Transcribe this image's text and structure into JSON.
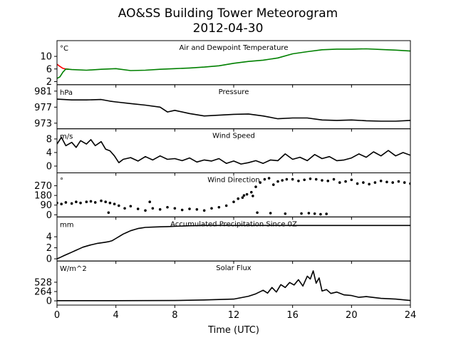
{
  "figure": {
    "title_line1": "AO&SS Building Tower Meteorogram",
    "title_line2": "2012-04-30",
    "xlabel": "Time (UTC)",
    "xticks": [
      0,
      4,
      8,
      12,
      16,
      20,
      24
    ],
    "xlim": [
      0,
      24
    ]
  },
  "colors": {
    "temperature": "#ff0000",
    "dewpoint": "#008000",
    "series": "#000000"
  },
  "chart_data": [
    {
      "type": "line",
      "title": "Air and Dewpoint Temperature",
      "unit": "°C",
      "ylim": [
        1,
        15
      ],
      "yticks": [
        2,
        6,
        10
      ],
      "series": [
        {
          "color": "#ff0000",
          "x": [
            0,
            0.2,
            0.4,
            0.6,
            0.8
          ],
          "y": [
            7.5,
            6.8,
            6.2,
            6.0,
            5.9
          ]
        },
        {
          "color": "#008000",
          "x": [
            0,
            0.2,
            0.4,
            0.6,
            1,
            2,
            3,
            4,
            5,
            6,
            7,
            8,
            9,
            10,
            11,
            12,
            13,
            14,
            15,
            16,
            17,
            18,
            19,
            20,
            21,
            22,
            23,
            24
          ],
          "y": [
            3.0,
            3.5,
            5.0,
            6.0,
            5.8,
            5.6,
            5.9,
            6.1,
            5.5,
            5.6,
            5.9,
            6.1,
            6.3,
            6.6,
            7.0,
            7.8,
            8.4,
            8.8,
            9.5,
            10.8,
            11.5,
            12.1,
            12.3,
            12.3,
            12.4,
            12.2,
            12.0,
            11.7
          ]
        }
      ]
    },
    {
      "type": "line",
      "title": "Pressure",
      "unit": "hPa",
      "ylim": [
        971.6,
        982.6
      ],
      "yticks": [
        973,
        977,
        981
      ],
      "series": [
        {
          "color": "#000000",
          "x": [
            0,
            1,
            2,
            3,
            3.6,
            4,
            5,
            6,
            7,
            7.5,
            8,
            9,
            10,
            11,
            12,
            13,
            14,
            15,
            16,
            17,
            18,
            19,
            20,
            21,
            22,
            23,
            24
          ],
          "y": [
            979.0,
            978.8,
            978.8,
            978.9,
            978.5,
            978.3,
            977.9,
            977.5,
            977.0,
            975.8,
            976.2,
            975.4,
            974.8,
            975.0,
            975.2,
            975.3,
            974.8,
            974.1,
            974.3,
            974.3,
            973.8,
            973.7,
            973.8,
            973.6,
            973.5,
            973.5,
            973.7
          ]
        }
      ]
    },
    {
      "type": "line",
      "title": "Wind Speed",
      "unit": "m/s",
      "ylim": [
        -2,
        11
      ],
      "yticks": [
        0,
        4,
        8
      ],
      "series": [
        {
          "color": "#000000",
          "x": [
            0,
            0.3,
            0.6,
            1,
            1.3,
            1.6,
            2,
            2.3,
            2.6,
            3,
            3.3,
            3.6,
            3.9,
            4.2,
            4.5,
            5,
            5.5,
            6,
            6.5,
            7,
            7.5,
            8,
            8.5,
            9,
            9.5,
            10,
            10.5,
            11,
            11.5,
            12,
            12.5,
            13,
            13.5,
            14,
            14.5,
            15,
            15.5,
            16,
            16.5,
            17,
            17.5,
            18,
            18.5,
            19,
            19.5,
            20,
            20.5,
            21,
            21.5,
            22,
            22.5,
            23,
            23.5,
            24
          ],
          "y": [
            6.5,
            8.5,
            6.0,
            7.0,
            5.5,
            7.5,
            6.5,
            7.8,
            6.0,
            7.2,
            5.0,
            4.5,
            3.0,
            1.0,
            2.0,
            2.5,
            1.5,
            2.8,
            1.8,
            3.0,
            2.0,
            2.2,
            1.6,
            2.4,
            1.2,
            1.8,
            1.5,
            2.2,
            0.8,
            1.5,
            0.6,
            1.0,
            1.6,
            0.8,
            1.8,
            1.6,
            3.6,
            2.0,
            2.6,
            1.6,
            3.4,
            2.2,
            2.8,
            1.6,
            1.8,
            2.4,
            3.6,
            2.6,
            4.2,
            3.0,
            4.6,
            3.0,
            4.0,
            3.2
          ]
        }
      ]
    },
    {
      "type": "scatter",
      "title": "Wind Direction",
      "unit": "°",
      "ylim": [
        -20,
        390
      ],
      "yticks": [
        0,
        90,
        180,
        270
      ],
      "series": [
        {
          "color": "#000000",
          "x": [
            0,
            0.3,
            0.6,
            1,
            1.3,
            1.6,
            2,
            2.3,
            2.6,
            3,
            3.3,
            3.6,
            3.9,
            4.2,
            4.6,
            5,
            5.5,
            6,
            6.5,
            7,
            7.5,
            8,
            8.5,
            9,
            9.5,
            10,
            10.5,
            11,
            11.5,
            12,
            12.3,
            12.6,
            12.9,
            13.2,
            13.5,
            13.8,
            14.1,
            14.4,
            14.7,
            15,
            15.3,
            15.6,
            16,
            16.4,
            16.8,
            17.2,
            17.6,
            18,
            18.4,
            18.8,
            19.2,
            19.6,
            20,
            20.4,
            20.8,
            21.2,
            21.6,
            22,
            22.4,
            22.8,
            23.2,
            23.6,
            24,
            3.5,
            6.3,
            12.7,
            13.3,
            14.5,
            15.5,
            16.6,
            17.1,
            17.5,
            17.9,
            18.3,
            13.6
          ],
          "y": [
            110,
            100,
            115,
            105,
            120,
            110,
            120,
            125,
            115,
            130,
            120,
            110,
            100,
            85,
            60,
            80,
            55,
            40,
            60,
            50,
            70,
            60,
            45,
            55,
            50,
            40,
            60,
            70,
            85,
            120,
            150,
            160,
            190,
            210,
            260,
            300,
            330,
            340,
            280,
            310,
            320,
            330,
            330,
            315,
            325,
            335,
            330,
            320,
            315,
            330,
            300,
            310,
            325,
            290,
            300,
            285,
            300,
            315,
            305,
            300,
            310,
            300,
            290,
            20,
            120,
            180,
            175,
            15,
            10,
            12,
            15,
            10,
            5,
            8,
            20
          ]
        }
      ]
    },
    {
      "type": "line",
      "title": "Accumulated Precipitation Since 0Z",
      "unit": "mm",
      "ylim": [
        -0.4,
        7.6
      ],
      "yticks": [
        0,
        2,
        4
      ],
      "series": [
        {
          "color": "#000000",
          "x": [
            0,
            0.25,
            0.5,
            0.75,
            1,
            1.25,
            1.5,
            1.75,
            2,
            2.25,
            2.5,
            2.75,
            3,
            3.25,
            3.5,
            3.75,
            4,
            4.25,
            4.5,
            4.75,
            5,
            5.25,
            5.5,
            5.75,
            6,
            6.5,
            7,
            7.5,
            8,
            9,
            10,
            12,
            16,
            20,
            24
          ],
          "y": [
            0,
            0.3,
            0.6,
            0.9,
            1.2,
            1.5,
            1.8,
            2.1,
            2.3,
            2.5,
            2.65,
            2.8,
            2.9,
            3.0,
            3.1,
            3.3,
            3.7,
            4.1,
            4.5,
            4.8,
            5.1,
            5.3,
            5.5,
            5.6,
            5.7,
            5.75,
            5.8,
            5.85,
            5.9,
            6.0,
            6.05,
            6.05,
            6.05,
            6.05,
            6.05
          ]
        }
      ]
    },
    {
      "type": "line",
      "title": "Solar Flux",
      "unit": "W/m^2",
      "ylim": [
        -120,
        1130
      ],
      "yticks": [
        0,
        264,
        528
      ],
      "series": [
        {
          "color": "#000000",
          "x": [
            0,
            4,
            8,
            10,
            12,
            13,
            13.5,
            14,
            14.3,
            14.6,
            14.9,
            15.2,
            15.5,
            15.8,
            16.1,
            16.4,
            16.7,
            17,
            17.2,
            17.4,
            17.6,
            17.8,
            18,
            18.3,
            18.6,
            19,
            19.5,
            20,
            20.5,
            21,
            22,
            23,
            24
          ],
          "y": [
            5,
            5,
            10,
            25,
            50,
            130,
            200,
            300,
            220,
            380,
            250,
            460,
            380,
            520,
            450,
            600,
            420,
            700,
            620,
            850,
            500,
            650,
            280,
            320,
            210,
            250,
            170,
            150,
            100,
            120,
            70,
            50,
            10
          ]
        }
      ]
    }
  ]
}
